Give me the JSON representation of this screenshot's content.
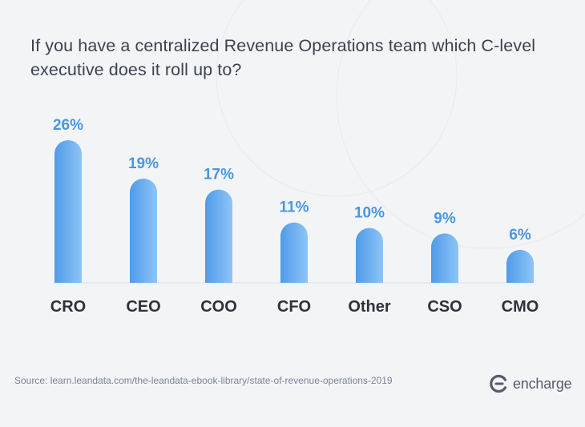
{
  "title": "If you have a centralized Revenue Operations team which C-level executive does it roll up to?",
  "source": "Source: learn.leandata.com/the-leandata-ebook-library/state-of-revenue-operations-2019",
  "brand": {
    "name": "encharge",
    "icon": "encharge-logo-icon"
  },
  "colors": {
    "bar_top": "#4f9be8",
    "bar_bottom": "#8ec4f7",
    "value_label": "#4a96e4",
    "category_label": "#2d323b",
    "background": "#f3f4f6"
  },
  "chart_data": {
    "type": "bar",
    "title": "If you have a centralized Revenue Operations team which C-level executive does it roll up to?",
    "categories": [
      "CRO",
      "CEO",
      "COO",
      "CFO",
      "Other",
      "CSO",
      "CMO"
    ],
    "values": [
      26,
      19,
      17,
      11,
      10,
      9,
      6
    ],
    "value_labels": [
      "26%",
      "19%",
      "17%",
      "11%",
      "10%",
      "9%",
      "6%"
    ],
    "xlabel": "",
    "ylabel": "",
    "ylim": [
      0,
      26
    ],
    "grid": false,
    "legend": "none"
  }
}
